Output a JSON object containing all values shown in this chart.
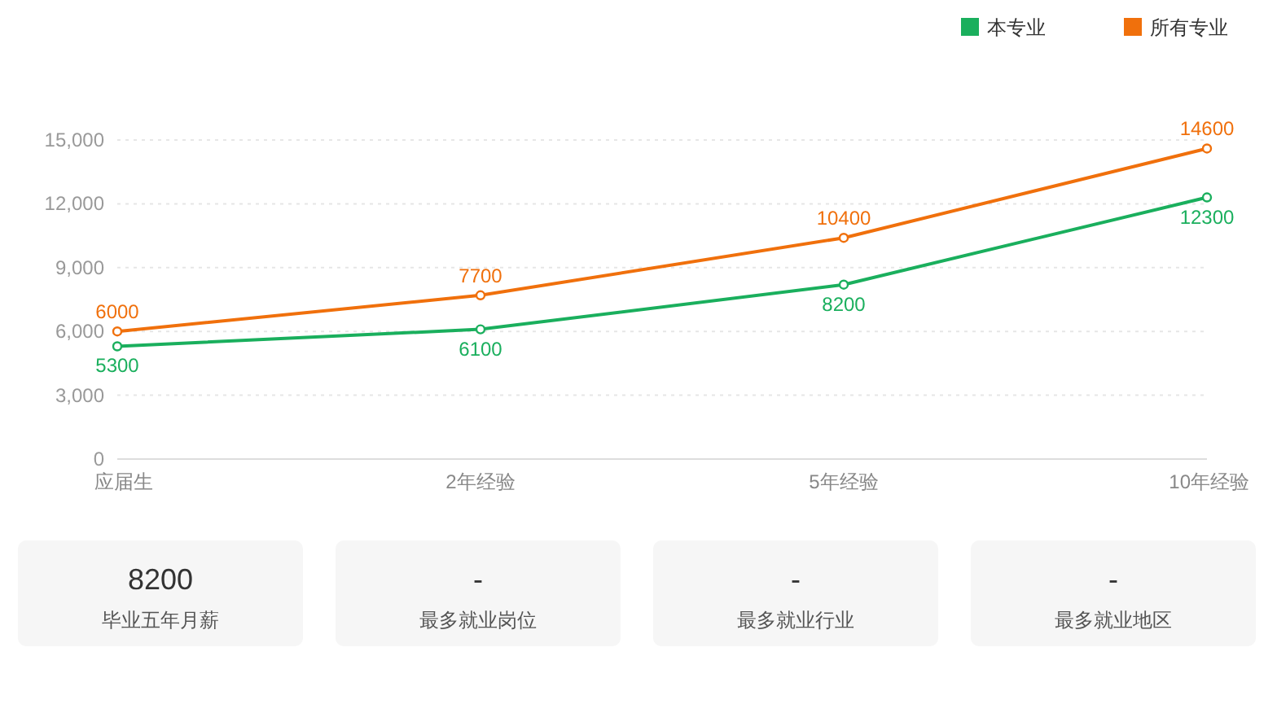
{
  "chart_data": [
    {
      "type": "line",
      "categories": [
        "应届生",
        "2年经验",
        "5年经验",
        "10年经验"
      ],
      "series": [
        {
          "name": "本专业",
          "color": "#1aaf5d",
          "values": [
            5300,
            6100,
            8200,
            12300
          ]
        },
        {
          "name": "所有专业",
          "color": "#f0700c",
          "values": [
            6000,
            7700,
            10400,
            14600
          ]
        }
      ],
      "ylim": [
        0,
        15000
      ],
      "yticks": [
        0,
        {
          "value": 3000,
          "label": "3,000"
        },
        {
          "value": 6000,
          "label": "6,000"
        },
        {
          "value": 9000,
          "label": "9,000"
        },
        {
          "value": 12000,
          "label": "12,000"
        },
        {
          "value": 15000,
          "label": "15,000"
        }
      ],
      "grid": "y",
      "legend": "top right",
      "marker": "circle",
      "data_labels": true
    },
    {
      "type": "other",
      "annotations": [
        "8200",
        "毕业五年月薪",
        "-",
        "最多就业岗位",
        "-",
        "最多就业行业",
        "-",
        "最多就业地区"
      ]
    }
  ]
}
